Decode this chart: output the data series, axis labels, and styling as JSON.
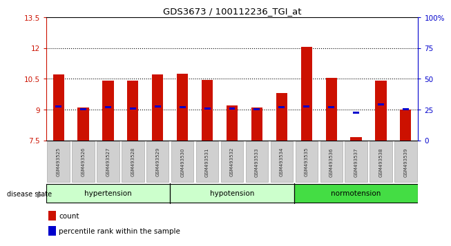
{
  "title": "GDS3673 / 100112236_TGI_at",
  "samples": [
    "GSM493525",
    "GSM493526",
    "GSM493527",
    "GSM493528",
    "GSM493529",
    "GSM493530",
    "GSM493531",
    "GSM493532",
    "GSM493533",
    "GSM493534",
    "GSM493535",
    "GSM493536",
    "GSM493537",
    "GSM493538",
    "GSM493539"
  ],
  "bar_values": [
    10.7,
    9.1,
    10.4,
    10.4,
    10.7,
    10.75,
    10.45,
    9.2,
    9.1,
    9.8,
    12.05,
    10.55,
    7.65,
    10.4,
    9.0
  ],
  "blue_marker_values": [
    9.15,
    9.0,
    9.1,
    9.05,
    9.15,
    9.1,
    9.05,
    9.05,
    9.0,
    9.1,
    9.15,
    9.1,
    8.85,
    9.25,
    9.0
  ],
  "bar_bottom": 7.5,
  "ylim": [
    7.5,
    13.5
  ],
  "yticks_left": [
    7.5,
    9.0,
    10.5,
    12.0,
    13.5
  ],
  "ytick_labels_left": [
    "7.5",
    "9",
    "10.5",
    "12",
    "13.5"
  ],
  "ytick_labels_right": [
    "0",
    "25",
    "50",
    "75",
    "100%"
  ],
  "bar_color": "#cc1100",
  "blue_color": "#0000cc",
  "grid_yticks": [
    9.0,
    10.5,
    12.0
  ],
  "groups": [
    {
      "label": "hypertension",
      "start": 0,
      "end": 5,
      "color": "#ccffcc"
    },
    {
      "label": "hypotension",
      "start": 5,
      "end": 10,
      "color": "#ccffcc"
    },
    {
      "label": "normotension",
      "start": 10,
      "end": 15,
      "color": "#44dd44"
    }
  ],
  "group_dividers": [
    4.5,
    9.5
  ],
  "disease_state_label": "disease state",
  "legend_count_label": "count",
  "legend_percentile_label": "percentile rank within the sample",
  "left_axis_color": "#cc1100",
  "right_axis_color": "#0000cc"
}
